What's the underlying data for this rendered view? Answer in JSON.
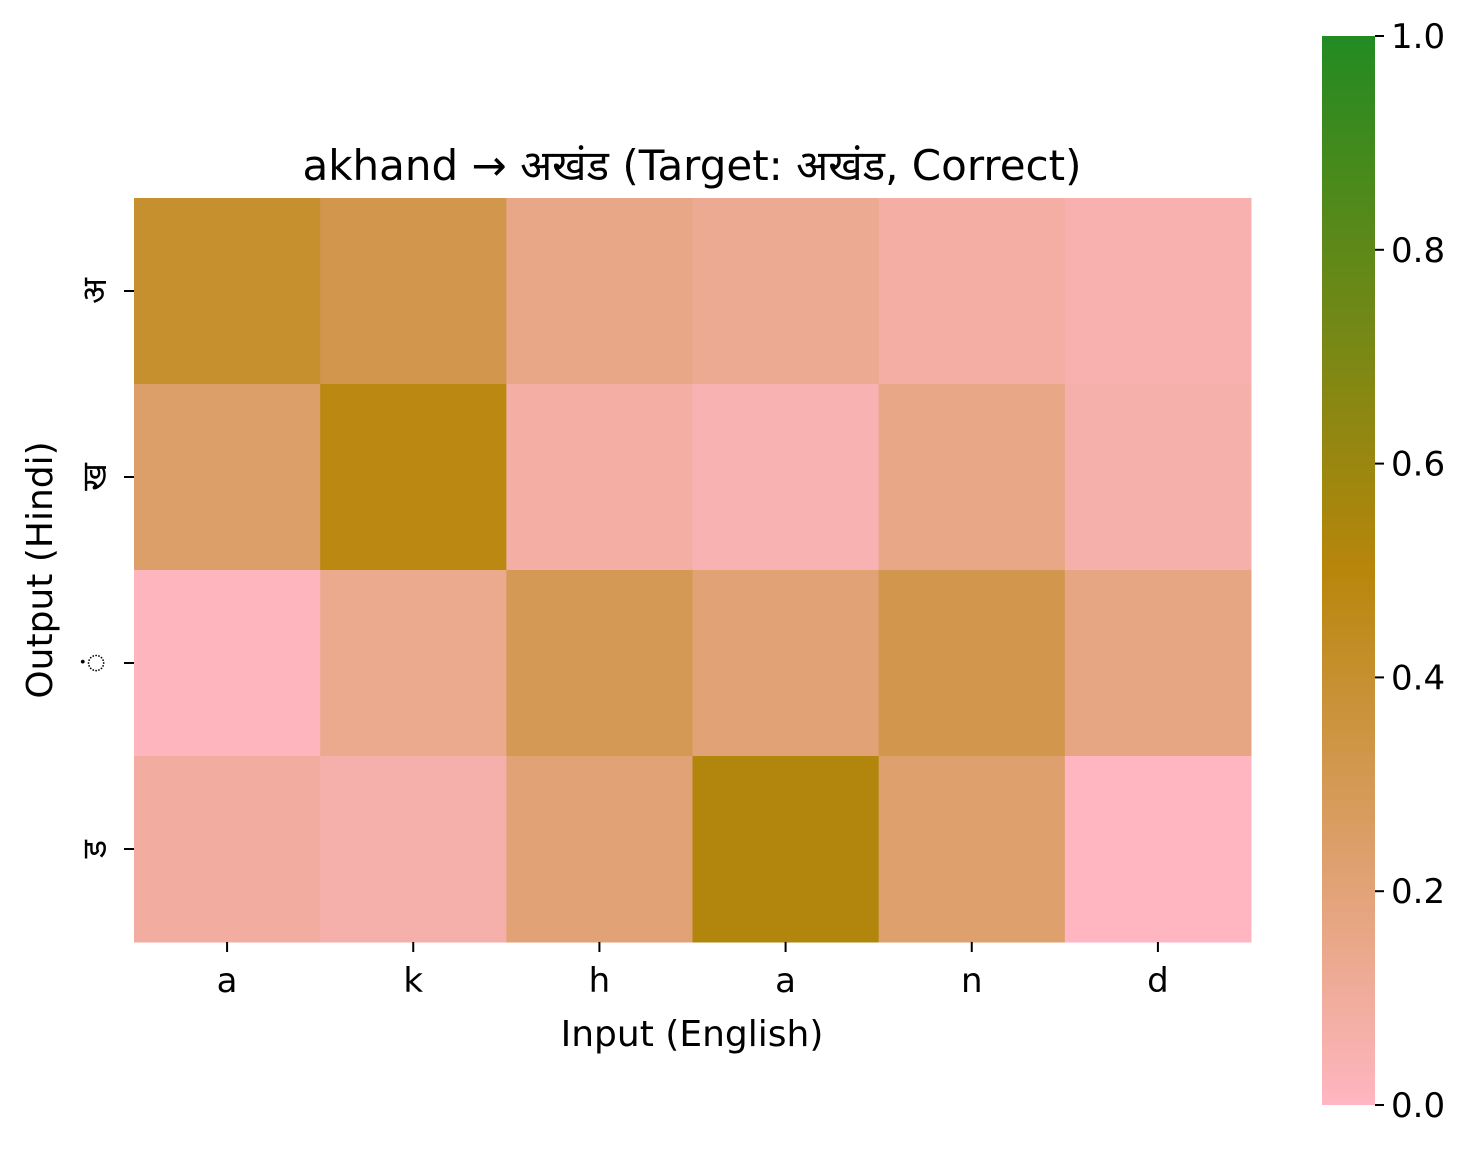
{
  "chart_data": {
    "type": "heatmap",
    "title": "akhand → अखंड (Target: अखंड, Correct)",
    "xlabel": "Input (English)",
    "ylabel": "Output (Hindi)",
    "x_categories": [
      "a",
      "k",
      "h",
      "a",
      "n",
      "d"
    ],
    "y_categories": [
      "अ",
      "ख",
      "ं",
      "ड"
    ],
    "values": [
      [
        0.4,
        0.32,
        0.16,
        0.13,
        0.08,
        0.05
      ],
      [
        0.24,
        0.48,
        0.08,
        0.04,
        0.16,
        0.06
      ],
      [
        0.01,
        0.14,
        0.3,
        0.21,
        0.32,
        0.17
      ],
      [
        0.09,
        0.06,
        0.21,
        0.52,
        0.23,
        0.0
      ]
    ],
    "colorbar": {
      "range": [
        0.0,
        1.0
      ],
      "ticks": [
        "0.0",
        "0.2",
        "0.4",
        "0.6",
        "0.8",
        "1.0"
      ],
      "tick_values": [
        0.0,
        0.2,
        0.4,
        0.6,
        0.8,
        1.0
      ],
      "colors": [
        "#ffb6c1",
        "#b8860b",
        "#228b22"
      ]
    },
    "grid": false,
    "legend": "colorbar-right"
  }
}
